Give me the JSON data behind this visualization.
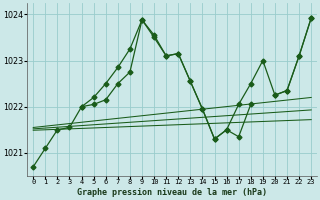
{
  "title": "Graphe pression niveau de la mer (hPa)",
  "bg_color": "#cce8e8",
  "grid_color": "#99cccc",
  "line_color": "#1a5c1a",
  "hours": [
    0,
    1,
    2,
    3,
    4,
    5,
    6,
    7,
    8,
    9,
    10,
    11,
    12,
    13,
    14,
    15,
    16,
    17,
    18,
    19,
    20,
    21,
    22,
    23
  ],
  "line1": [
    1020.7,
    1021.1,
    1021.5,
    1021.55,
    1022.0,
    1022.05,
    1022.15,
    1022.5,
    1022.75,
    1023.88,
    1023.5,
    1023.1,
    1023.15,
    1022.55,
    1021.95,
    1021.3,
    1021.5,
    1021.35,
    1022.05,
    null,
    1022.25,
    1022.35,
    1023.1,
    1023.92
  ],
  "line2_x": [
    4,
    5,
    6,
    7,
    8,
    9,
    10,
    11,
    12,
    13,
    14,
    15,
    16,
    17,
    18,
    19,
    20,
    21,
    22,
    23
  ],
  "line2_y": [
    1022.0,
    1022.2,
    1022.5,
    1022.85,
    1023.25,
    1023.88,
    1023.55,
    1023.1,
    1023.15,
    1022.55,
    1021.95,
    1021.3,
    1021.5,
    1022.05,
    1022.5,
    1023.0,
    1022.25,
    1022.35,
    1023.1,
    1023.92
  ],
  "smooth_lines": [
    {
      "x0": 0,
      "y0": 1021.55,
      "x1": 23,
      "y1": 1022.2
    },
    {
      "x0": 0,
      "y0": 1021.52,
      "x1": 23,
      "y1": 1021.93
    },
    {
      "x0": 0,
      "y0": 1021.49,
      "x1": 23,
      "y1": 1021.72
    }
  ],
  "ylim": [
    1020.5,
    1024.25
  ],
  "yticks": [
    1021,
    1022,
    1023,
    1024
  ],
  "xlim": [
    -0.5,
    23.5
  ]
}
